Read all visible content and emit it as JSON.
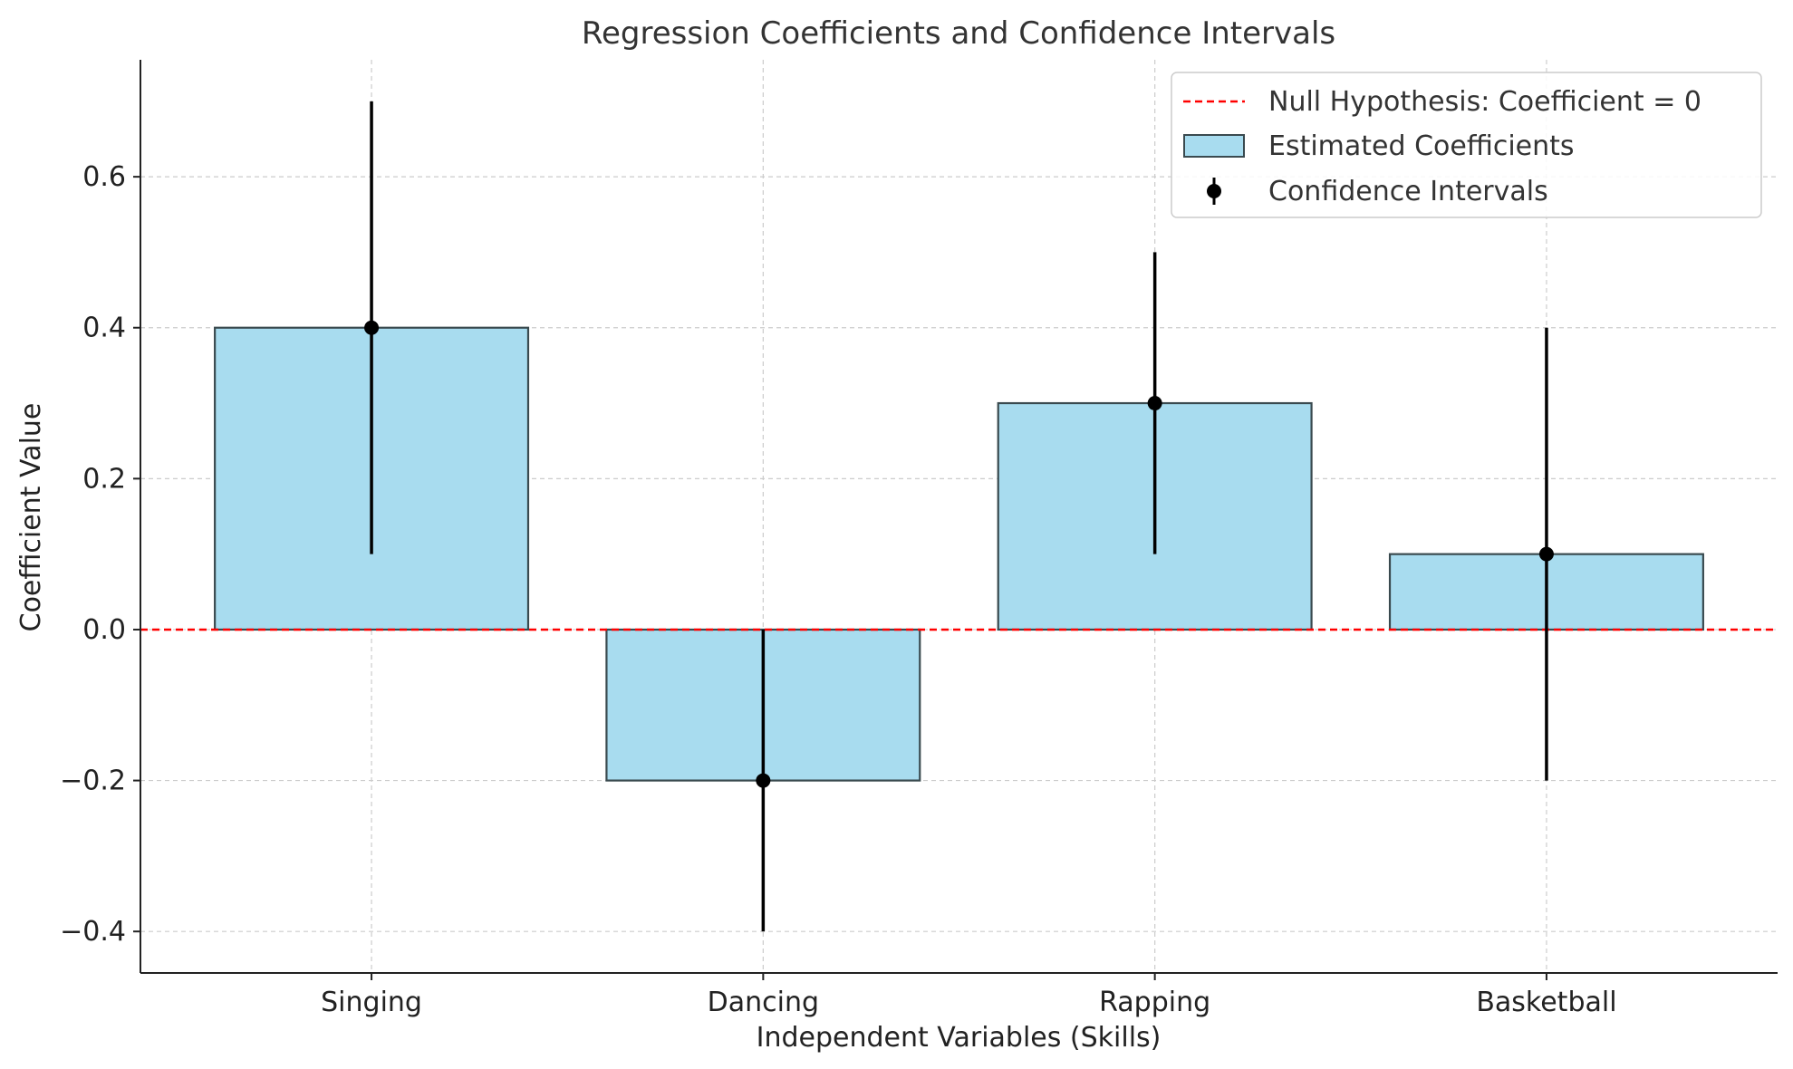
{
  "chart_data": {
    "type": "bar",
    "title": "Regression Coefficients and Confidence Intervals",
    "xlabel": "Independent Variables (Skills)",
    "ylabel": "Coefficient Value",
    "categories": [
      "Singing",
      "Dancing",
      "Rapping",
      "Basketball"
    ],
    "series": [
      {
        "name": "Estimated Coefficients",
        "values": [
          0.4,
          -0.2,
          0.3,
          0.1
        ],
        "ci_lower": [
          0.1,
          -0.4,
          0.1,
          -0.2
        ],
        "ci_upper": [
          0.7,
          0.0,
          0.5,
          0.4
        ]
      }
    ],
    "reference_line": {
      "name": "Null Hypothesis: Coefficient = 0",
      "value": 0,
      "color": "#ff0000",
      "style": "dashed"
    },
    "errorbar_name": "Confidence Intervals",
    "ylim": [
      -0.455,
      0.755
    ],
    "yticks": [
      -0.4,
      -0.2,
      0.0,
      0.2,
      0.4,
      0.6
    ],
    "ytick_labels": [
      "−0.4",
      "−0.2",
      "0.0",
      "0.2",
      "0.4",
      "0.6"
    ],
    "grid": true,
    "legend_position": "top-right",
    "colors": {
      "bar_fill": "#a8dcef",
      "bar_edge": "#3a4a4f",
      "errorbar": "#000000",
      "null_line": "#ff0000",
      "grid": "#cccccc",
      "axis": "#222222"
    }
  }
}
